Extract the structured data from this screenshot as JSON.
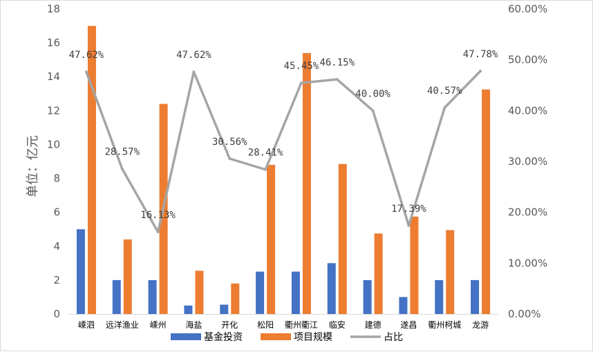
{
  "chart_data": {
    "type": "bar",
    "categories": [
      "嵊泗",
      "远洋渔业",
      "嵊州",
      "海盐",
      "开化",
      "松阳",
      "衢州衢江",
      "临安",
      "建德",
      "遂昌",
      "衢州柯城",
      "龙游"
    ],
    "series": [
      {
        "name": "基金投资",
        "type": "bar",
        "axis": "left",
        "color": "#4472C4",
        "values": [
          5,
          2,
          2,
          0.5,
          0.55,
          2.5,
          2.5,
          3,
          2,
          1,
          2,
          2
        ]
      },
      {
        "name": "项目规模",
        "type": "bar",
        "axis": "left",
        "color": "#ED7D31",
        "values": [
          17,
          4.4,
          12.4,
          2.55,
          1.8,
          8.8,
          15.4,
          8.85,
          4.75,
          5.75,
          4.95,
          13.25
        ]
      },
      {
        "name": "占比",
        "type": "line",
        "axis": "right",
        "color": "#A5A5A5",
        "values": [
          47.62,
          28.57,
          16.13,
          47.62,
          30.56,
          28.41,
          45.45,
          46.15,
          40.0,
          17.39,
          40.57,
          47.78
        ],
        "labels": [
          "47.62%",
          "28.57%",
          "16.13%",
          "47.62%",
          "30.56%",
          "28.41%",
          "45.45%",
          "46.15%",
          "40.00%",
          "17.39%",
          "40.57%",
          "47.78%"
        ]
      }
    ],
    "ylabel": "单位：亿元",
    "ylim": [
      0,
      18
    ],
    "yticks": [
      "0",
      "2",
      "4",
      "6",
      "8",
      "10",
      "12",
      "14",
      "16",
      "18"
    ],
    "y2lim": [
      0,
      60
    ],
    "y2ticks": [
      "0.00%",
      "10.00%",
      "20.00%",
      "30.00%",
      "40.00%",
      "50.00%",
      "60.00%"
    ],
    "grid": false,
    "legend_position": "bottom"
  }
}
